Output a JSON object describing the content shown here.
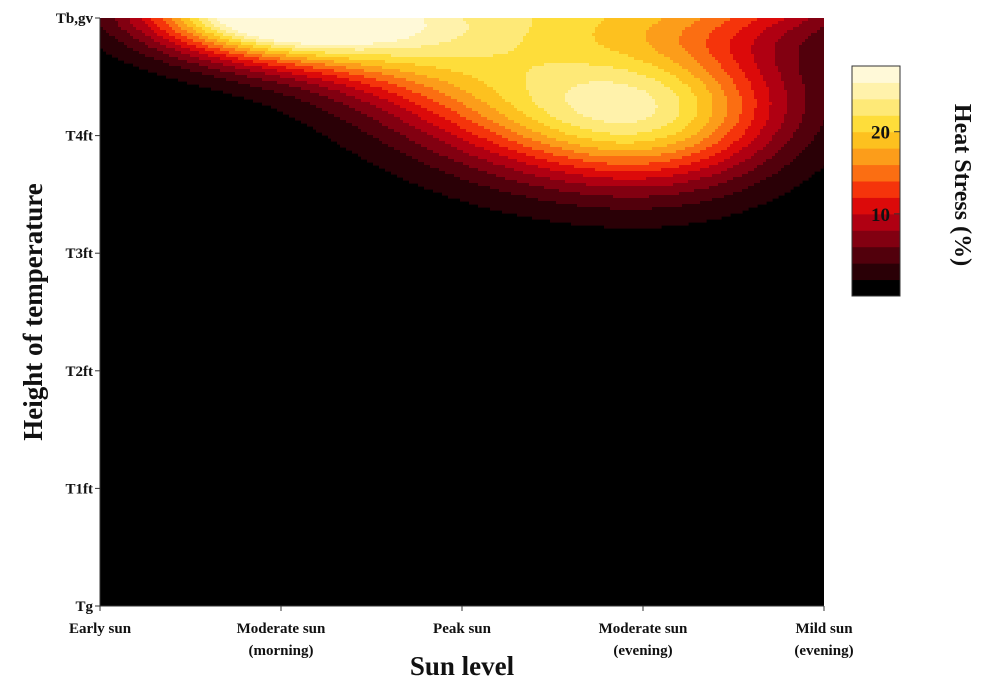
{
  "chart_data": {
    "type": "heatmap",
    "style": "filled-contour",
    "xlabel": "Sun level",
    "ylabel": "Height of temperature",
    "x_categories": [
      {
        "line1": "Early sun",
        "line2": ""
      },
      {
        "line1": "Moderate sun",
        "line2": "(morning)"
      },
      {
        "line1": "Peak sun",
        "line2": ""
      },
      {
        "line1": "Moderate sun",
        "line2": "(evening)"
      },
      {
        "line1": "Mild sun",
        "line2": "(evening)"
      }
    ],
    "y_categories": [
      "Tg",
      "T1ft",
      "T2ft",
      "T3ft",
      "T4ft",
      "Tb,gv"
    ],
    "colorbar": {
      "title": "Heat Stress (%)",
      "ticks": [
        10,
        20
      ],
      "range": [
        0,
        28
      ],
      "levels": [
        0,
        2,
        4,
        6,
        8,
        10,
        12,
        14,
        16,
        18,
        20,
        22,
        24,
        26,
        28
      ],
      "colors": [
        "#000000",
        "#2a0006",
        "#52000c",
        "#820011",
        "#b00012",
        "#dc0a0a",
        "#f5340b",
        "#fb6e12",
        "#fc9d1a",
        "#fdc11f",
        "#fedd3a",
        "#fee977",
        "#fff2ab",
        "#fff9d8"
      ]
    },
    "hotspots": [
      {
        "x": 2.55,
        "y": 4.05,
        "peak": 27.5,
        "sx": 0.75,
        "sy": 0.6
      },
      {
        "x": 3.15,
        "y": 3.9,
        "peak": 15,
        "sx": 0.5,
        "sy": 0.55
      },
      {
        "x": 1.0,
        "y": 5.0,
        "peak": 27.5,
        "sx": 0.45,
        "sy": 0.28
      },
      {
        "x": 1.6,
        "y": 4.8,
        "peak": 13,
        "sx": 0.5,
        "sy": 0.4
      },
      {
        "x": 0.55,
        "y": 5.05,
        "peak": 14,
        "sx": 0.45,
        "sy": 0.35
      },
      {
        "x": 3.3,
        "y": 5.3,
        "peak": 16,
        "sx": 0.7,
        "sy": 0.3
      },
      {
        "x": 2.2,
        "y": 5.1,
        "peak": 8,
        "sx": 0.5,
        "sy": 0.3
      }
    ],
    "grid": false,
    "legend": "colorbar-right"
  }
}
